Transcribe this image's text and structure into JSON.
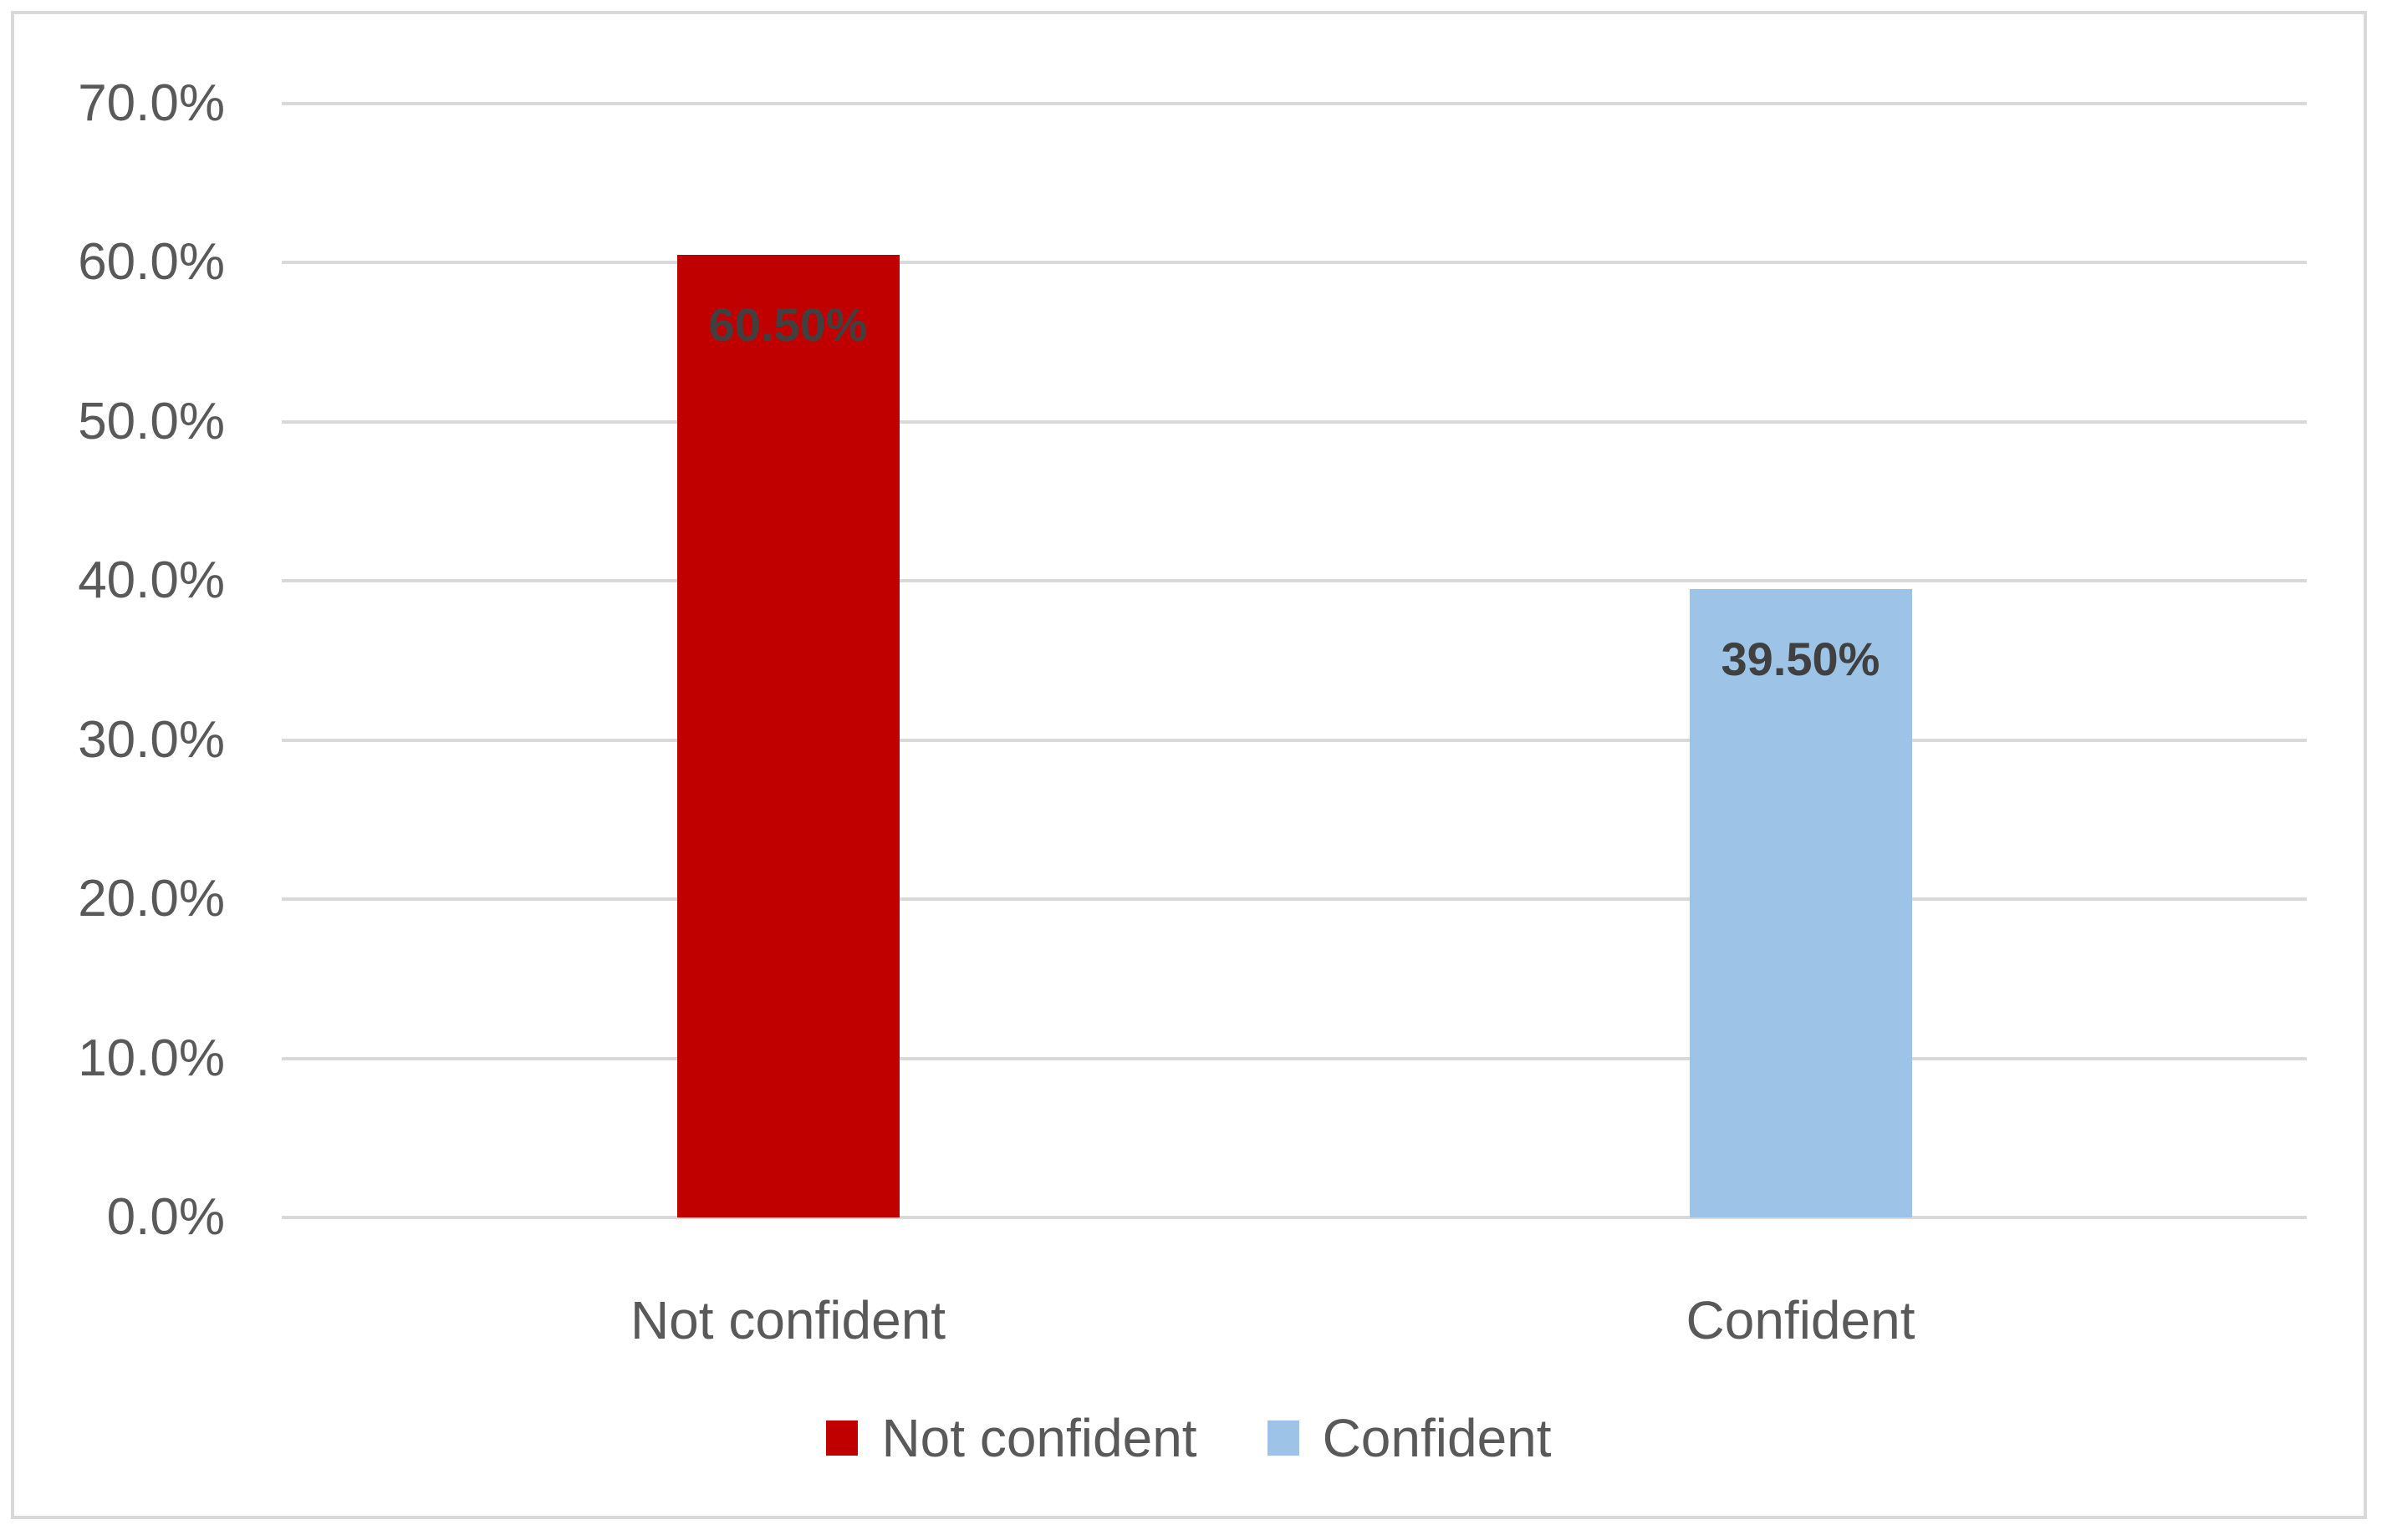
{
  "chart_data": {
    "type": "bar",
    "categories": [
      "Not confident",
      "Confident"
    ],
    "values": [
      60.5,
      39.5
    ],
    "value_labels": [
      "60.50%",
      "39.50%"
    ],
    "series_colors": [
      "#C00000",
      "#9DC3E6"
    ],
    "title": "",
    "xlabel": "",
    "ylabel": "",
    "ylim": [
      0,
      70
    ],
    "ytick_step": 10,
    "ytick_labels": [
      "0.0%",
      "10.0%",
      "20.0%",
      "30.0%",
      "40.0%",
      "50.0%",
      "60.0%",
      "70.0%"
    ],
    "grid": true,
    "data_label_position": "inside-end",
    "legend_position": "bottom",
    "legend": [
      {
        "label": "Not confident",
        "color": "#C00000"
      },
      {
        "label": "Confident",
        "color": "#9DC3E6"
      }
    ]
  },
  "colors": {
    "background": "#FFFFFF",
    "frame_border": "#D9D9D9",
    "gridline": "#D9D9D9",
    "axis_text": "#595959",
    "data_label_text": "#404040"
  }
}
